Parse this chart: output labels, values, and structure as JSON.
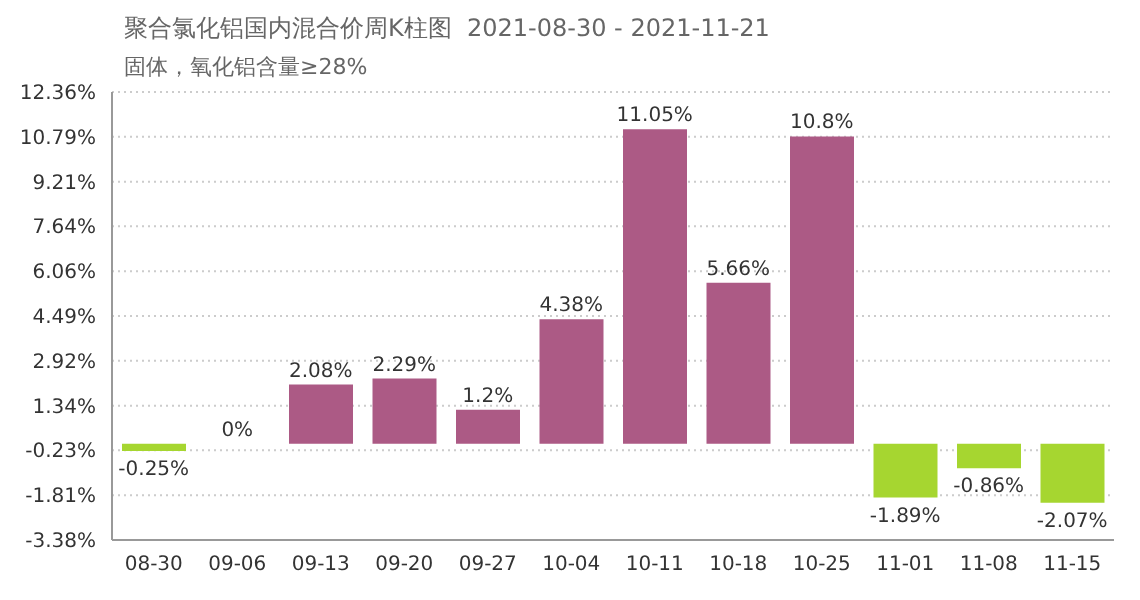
{
  "chart_data": {
    "type": "bar",
    "title": "聚合氯化铝国内混合价周K柱图  2021-08-30 - 2021-11-21",
    "subtitle": "固体，氧化铝含量≥28%",
    "categories": [
      "08-30",
      "09-06",
      "09-13",
      "09-20",
      "09-27",
      "10-04",
      "10-11",
      "10-18",
      "10-25",
      "11-01",
      "11-08",
      "11-15"
    ],
    "values": [
      -0.25,
      0,
      2.08,
      2.29,
      1.2,
      4.38,
      11.05,
      5.66,
      10.8,
      -1.89,
      -0.86,
      -2.07
    ],
    "value_labels": [
      "-0.25%",
      "0%",
      "2.08%",
      "2.29%",
      "1.2%",
      "4.38%",
      "11.05%",
      "5.66%",
      "10.8%",
      "-1.89%",
      "-0.86%",
      "-2.07%"
    ],
    "colors": [
      "#a6d630",
      "#a6d630",
      "#ac5a85",
      "#ac5a85",
      "#ac5a85",
      "#ac5a85",
      "#ac5a85",
      "#ac5a85",
      "#ac5a85",
      "#a6d630",
      "#a6d630",
      "#a6d630"
    ],
    "ylim": [
      -3.38,
      12.36
    ],
    "yticks": [
      {
        "value": -3.38,
        "label": "-3.38%"
      },
      {
        "value": -1.81,
        "label": "-1.81%"
      },
      {
        "value": -0.23,
        "label": "-0.23%"
      },
      {
        "value": 1.34,
        "label": "1.34%"
      },
      {
        "value": 2.92,
        "label": "2.92%"
      },
      {
        "value": 4.49,
        "label": "4.49%"
      },
      {
        "value": 6.06,
        "label": "6.06%"
      },
      {
        "value": 7.64,
        "label": "7.64%"
      },
      {
        "value": 9.21,
        "label": "9.21%"
      },
      {
        "value": 10.79,
        "label": "10.79%"
      },
      {
        "value": 12.36,
        "label": "12.36%"
      }
    ],
    "grid": "y"
  }
}
